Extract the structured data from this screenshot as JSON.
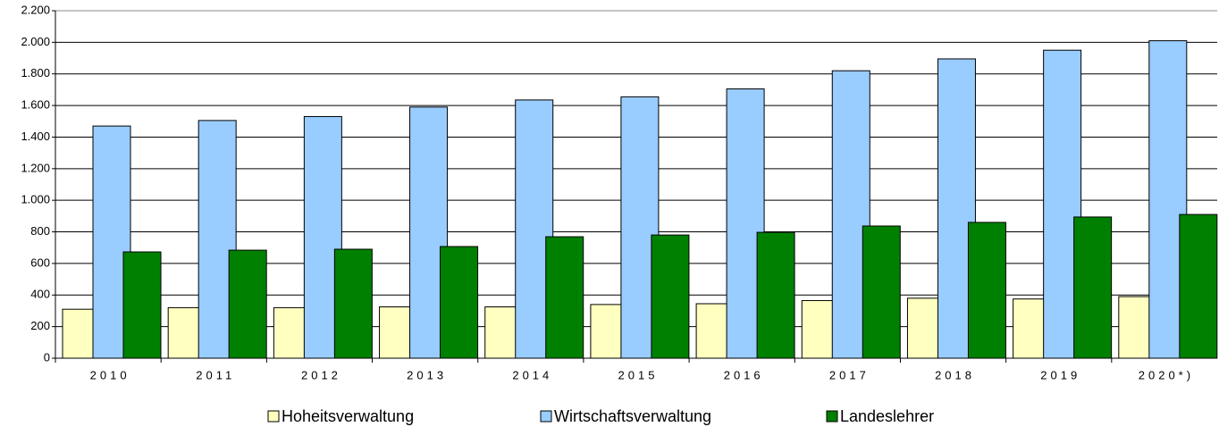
{
  "chart_data": {
    "type": "bar",
    "categories": [
      "2010",
      "2011",
      "2012",
      "2013",
      "2014",
      "2015",
      "2016",
      "2017",
      "2018",
      "2019",
      "2020*)"
    ],
    "series": [
      {
        "name": "Hoheitsverwaltung",
        "color": "#ffffc0",
        "values": [
          310,
          320,
          320,
          325,
          325,
          340,
          345,
          365,
          380,
          375,
          390
        ]
      },
      {
        "name": "Wirtschaftsverwaltung",
        "color": "#99ccff",
        "values": [
          1470,
          1505,
          1530,
          1590,
          1635,
          1655,
          1705,
          1820,
          1895,
          1950,
          2010
        ]
      },
      {
        "name": "Landeslehrer",
        "color": "#008000",
        "values": [
          673,
          684,
          690,
          707,
          769,
          780,
          797,
          837,
          860,
          894,
          910
        ]
      }
    ],
    "ylim": [
      0,
      2200
    ],
    "yticks": [
      0,
      200,
      400,
      600,
      800,
      {
        "value": 1000,
        "label": "1.000"
      },
      {
        "value": 1200,
        "label": "1.200"
      },
      {
        "value": 1400,
        "label": "1.400"
      },
      {
        "value": 1600,
        "label": "1.600"
      },
      {
        "value": 1800,
        "label": "1.800"
      },
      {
        "value": 2000,
        "label": "2.000"
      },
      {
        "value": 2200,
        "label": "2.200"
      }
    ],
    "grid": true,
    "legend": "bottom"
  }
}
